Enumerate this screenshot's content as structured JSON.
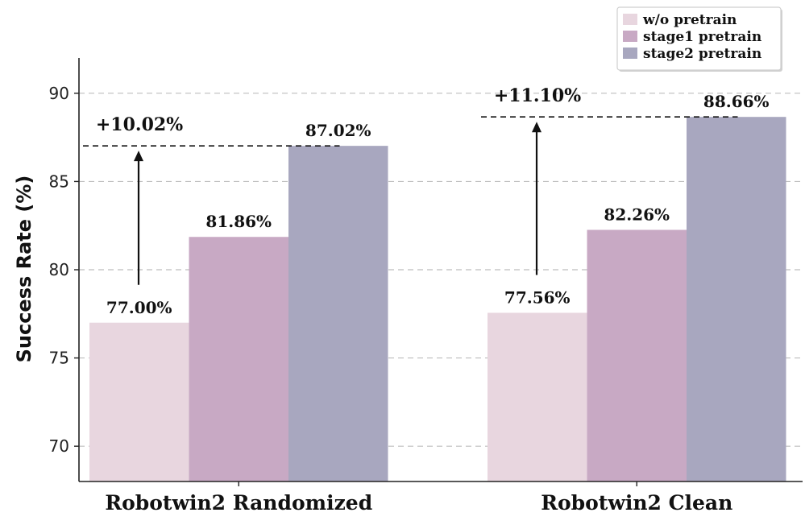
{
  "chart_data": {
    "type": "bar",
    "categories": [
      "Robotwin2 Randomized",
      "Robotwin2 Clean"
    ],
    "series": [
      {
        "name": "w/o pretrain",
        "values": [
          77.0,
          77.56
        ],
        "labels": [
          "77.00%",
          "77.56%"
        ],
        "color": "#e8d6df"
      },
      {
        "name": "stage1 pretrain",
        "values": [
          81.86,
          82.26
        ],
        "labels": [
          "81.86%",
          "82.26%"
        ],
        "color": "#c8a9c4"
      },
      {
        "name": "stage2 pretrain",
        "values": [
          87.02,
          88.66
        ],
        "labels": [
          "87.02%",
          "88.66%"
        ],
        "color": "#a8a7bf"
      }
    ],
    "improvements": [
      "+10.02%",
      "+11.10%"
    ],
    "ylabel": "Success Rate (%)",
    "ylim": [
      68,
      92
    ],
    "yticks": [
      70,
      75,
      80,
      85,
      90
    ],
    "grid": true,
    "legend_position": "top-right"
  }
}
